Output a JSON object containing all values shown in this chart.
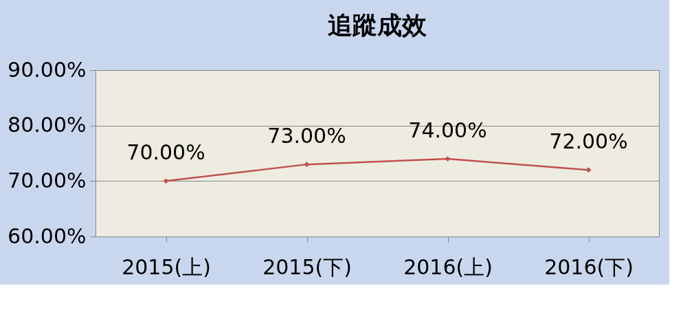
{
  "chart_data": {
    "type": "line",
    "title": "追蹤成效",
    "categories": [
      "2015(上)",
      "2015(下)",
      "2016(上)",
      "2016(下)"
    ],
    "series": [
      {
        "color": "#c0504d",
        "values": [
          70,
          73,
          74,
          72
        ],
        "value_labels": [
          "70.00%",
          "73.00%",
          "74.00%",
          "72.00%"
        ]
      }
    ],
    "ylim": [
      60,
      90
    ],
    "yticks": [
      {
        "value": 60,
        "label": "60.00%"
      },
      {
        "value": 70,
        "label": "70.00%"
      },
      {
        "value": 80,
        "label": "80.00%"
      },
      {
        "value": 90,
        "label": "90.00%"
      }
    ],
    "grid": "y",
    "marker": "diamond",
    "line_style": "solid"
  }
}
